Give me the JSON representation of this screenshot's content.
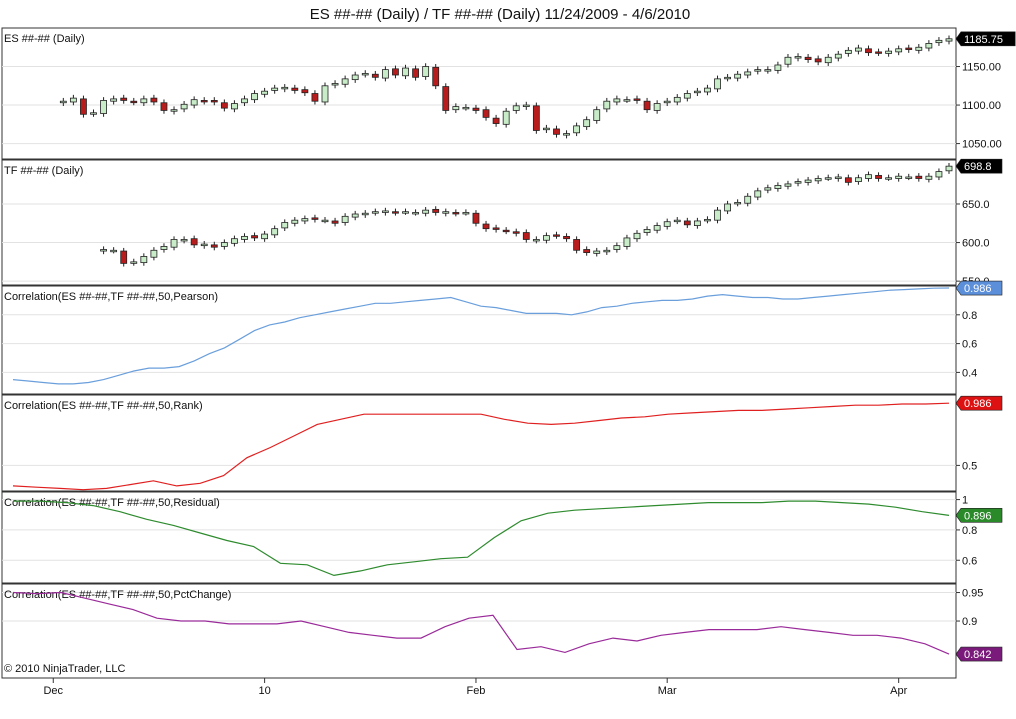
{
  "title": "ES ##-## (Daily) / TF ##-## (Daily)  11/24/2009 - 4/6/2010",
  "copyright": "© 2010 NinjaTrader, LLC",
  "x_axis": {
    "ticks": [
      {
        "label": "Dec",
        "bar": 4
      },
      {
        "label": "10",
        "bar": 25
      },
      {
        "label": "Feb",
        "bar": 46
      },
      {
        "label": "Mar",
        "bar": 65
      },
      {
        "label": "Apr",
        "bar": 88
      }
    ]
  },
  "chart_data": [
    {
      "type": "candlestick",
      "name": "ES ##-## (Daily)",
      "ylim": [
        1030,
        1200
      ],
      "yticks": [
        "1050.00",
        "1100.00",
        "1150.00"
      ],
      "ytick_values": [
        1050,
        1100,
        1150
      ],
      "last_value": "1185.75",
      "tag_color": "#000000",
      "closes": [
        1105,
        1109,
        1088,
        1090,
        1106,
        1108,
        1106,
        1104,
        1108,
        1104,
        1093,
        1094,
        1101,
        1107,
        1105,
        1104,
        1096,
        1102,
        1108,
        1115,
        1118,
        1122,
        1123,
        1119,
        1116,
        1105,
        1125,
        1128,
        1134,
        1139,
        1141,
        1136,
        1146,
        1139,
        1148,
        1136,
        1150,
        1125,
        1093,
        1098,
        1097,
        1093,
        1084,
        1076,
        1092,
        1099,
        1100,
        1067,
        1070,
        1062,
        1063,
        1073,
        1081,
        1094,
        1105,
        1108,
        1107,
        1106,
        1094,
        1102,
        1105,
        1110,
        1115,
        1118,
        1122,
        1134,
        1136,
        1140,
        1143,
        1146,
        1146,
        1152,
        1162,
        1163,
        1159,
        1156,
        1162,
        1166,
        1171,
        1174,
        1168,
        1168,
        1170,
        1173,
        1172,
        1175,
        1180,
        1184,
        1186
      ]
    },
    {
      "type": "candlestick",
      "name": "TF ##-## (Daily)",
      "ylim": [
        545,
        707
      ],
      "yticks": [
        "550.0",
        "600.0",
        "650.0"
      ],
      "ytick_values": [
        550,
        600,
        650
      ],
      "last_value": "698.8",
      "tag_color": "#000000",
      "closes": [
        591,
        590,
        573,
        575,
        582,
        590,
        595,
        604,
        604,
        597,
        598,
        594,
        600,
        605,
        608,
        606,
        611,
        618,
        626,
        629,
        631,
        630,
        629,
        625,
        634,
        637,
        638,
        640,
        641,
        639,
        640,
        639,
        642,
        639,
        640,
        638,
        639,
        625,
        618,
        617,
        615,
        612,
        604,
        604,
        609,
        609,
        605,
        590,
        587,
        589,
        590,
        596,
        606,
        612,
        617,
        622,
        627,
        629,
        623,
        628,
        630,
        642,
        650,
        652,
        660,
        667,
        671,
        674,
        676,
        679,
        681,
        683,
        684,
        685,
        678,
        684,
        688,
        683,
        684,
        686,
        685,
        683,
        686,
        692,
        699
      ]
    },
    {
      "type": "line",
      "name": "Correlation(ES ##-##,TF ##-##,50,Pearson)",
      "ylim": [
        0.25,
        1.0
      ],
      "yticks": [
        "0.4",
        "0.6",
        "0.8"
      ],
      "ytick_values": [
        0.4,
        0.6,
        0.8
      ],
      "last_value": "0.986",
      "tag_color": "#5b8fd9",
      "color": "#6a9fdc",
      "values": [
        0.35,
        0.34,
        0.33,
        0.32,
        0.32,
        0.33,
        0.35,
        0.38,
        0.41,
        0.43,
        0.43,
        0.44,
        0.48,
        0.53,
        0.57,
        0.63,
        0.69,
        0.73,
        0.75,
        0.78,
        0.8,
        0.82,
        0.84,
        0.86,
        0.88,
        0.88,
        0.89,
        0.9,
        0.91,
        0.92,
        0.89,
        0.86,
        0.85,
        0.83,
        0.81,
        0.81,
        0.81,
        0.8,
        0.82,
        0.85,
        0.86,
        0.88,
        0.89,
        0.9,
        0.9,
        0.91,
        0.93,
        0.94,
        0.93,
        0.92,
        0.92,
        0.91,
        0.91,
        0.92,
        0.93,
        0.94,
        0.95,
        0.96,
        0.97,
        0.975,
        0.98,
        0.985,
        0.986
      ]
    },
    {
      "type": "line",
      "name": "Correlation(ES ##-##,TF ##-##,50,Rank)",
      "ylim": [
        0.3,
        1.05
      ],
      "yticks": [
        "0.5"
      ],
      "ytick_values": [
        0.5
      ],
      "last_value": "0.986",
      "tag_color": "#dd1111",
      "color": "#e02020",
      "values": [
        0.34,
        0.33,
        0.32,
        0.31,
        0.32,
        0.35,
        0.38,
        0.34,
        0.36,
        0.42,
        0.56,
        0.64,
        0.73,
        0.82,
        0.86,
        0.9,
        0.9,
        0.9,
        0.9,
        0.9,
        0.9,
        0.86,
        0.83,
        0.82,
        0.83,
        0.85,
        0.87,
        0.88,
        0.9,
        0.91,
        0.92,
        0.93,
        0.93,
        0.94,
        0.95,
        0.96,
        0.97,
        0.97,
        0.98,
        0.98,
        0.986
      ]
    },
    {
      "type": "line",
      "name": "Correlation(ES ##-##,TF ##-##,50,Residual)",
      "ylim": [
        0.45,
        1.05
      ],
      "yticks": [
        "0.6",
        "0.8",
        "1"
      ],
      "ytick_values": [
        0.6,
        0.8,
        1.0
      ],
      "last_value": "0.896",
      "tag_color": "#2a8a2a",
      "color": "#2e8b2e",
      "values": [
        0.99,
        0.99,
        0.98,
        0.96,
        0.92,
        0.87,
        0.83,
        0.78,
        0.73,
        0.69,
        0.58,
        0.57,
        0.5,
        0.53,
        0.57,
        0.59,
        0.61,
        0.62,
        0.75,
        0.86,
        0.91,
        0.93,
        0.94,
        0.95,
        0.96,
        0.97,
        0.98,
        0.98,
        0.98,
        0.99,
        0.99,
        0.98,
        0.97,
        0.95,
        0.92,
        0.896
      ]
    },
    {
      "type": "line",
      "name": "Correlation(ES ##-##,TF ##-##,50,PctChange)",
      "ylim": [
        0.8,
        0.965
      ],
      "yticks": [
        "0.9",
        "0.95"
      ],
      "ytick_values": [
        0.9,
        0.95
      ],
      "last_value": "0.842",
      "tag_color": "#7a1a7a",
      "color": "#9a2a9a",
      "values": [
        0.95,
        0.948,
        0.95,
        0.94,
        0.93,
        0.92,
        0.905,
        0.9,
        0.9,
        0.895,
        0.895,
        0.895,
        0.9,
        0.89,
        0.88,
        0.875,
        0.87,
        0.87,
        0.89,
        0.905,
        0.91,
        0.85,
        0.855,
        0.845,
        0.86,
        0.87,
        0.865,
        0.875,
        0.88,
        0.885,
        0.885,
        0.885,
        0.89,
        0.885,
        0.88,
        0.875,
        0.875,
        0.87,
        0.86,
        0.842
      ]
    }
  ]
}
